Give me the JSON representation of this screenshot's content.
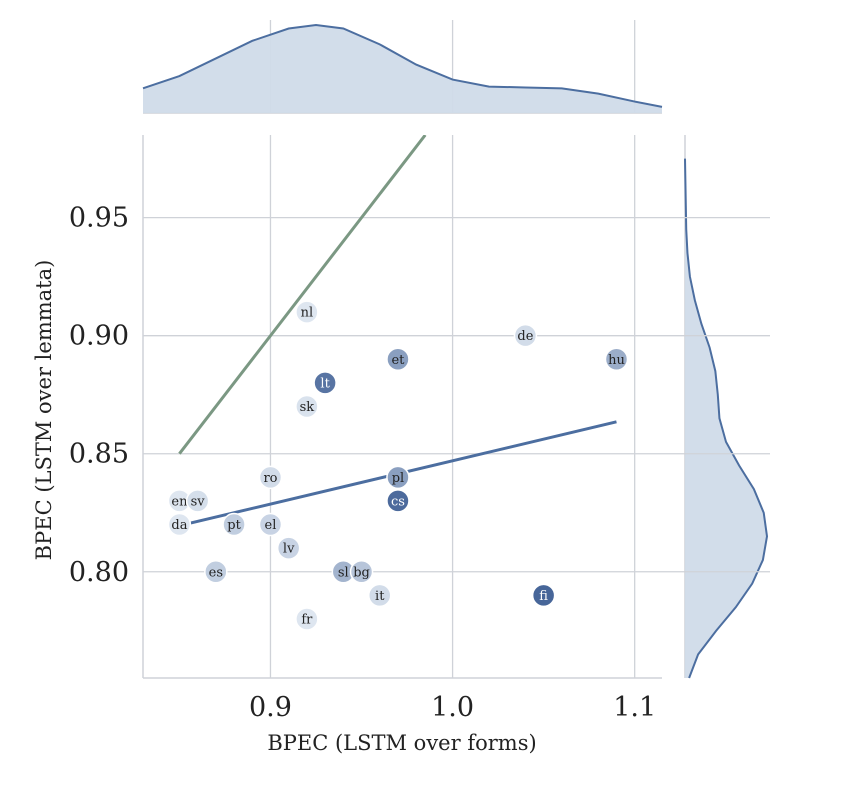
{
  "chart_data": {
    "type": "scatter",
    "title": "",
    "xlabel": "BPEC (LSTM over forms)",
    "ylabel": "BPEC (LSTM over lemmata)",
    "xlim": [
      0.83,
      1.115
    ],
    "ylim": [
      0.755,
      0.985
    ],
    "xticks": [
      0.9,
      1.0,
      1.1
    ],
    "xtick_labels": [
      "0.9",
      "1.0",
      "1.1"
    ],
    "yticks": [
      0.8,
      0.85,
      0.9,
      0.95
    ],
    "ytick_labels": [
      "0.80",
      "0.85",
      "0.90",
      "0.95"
    ],
    "grid": true,
    "legend": "none",
    "colors": {
      "regression_line": "#4c6ea0",
      "identity_line": "#7b9883",
      "kde_fill": "#d0dbe9",
      "kde_line": "#4c6ea0",
      "grid": "#cfd2d8",
      "point_light": "#e6edf5",
      "point_dark": "#3f5f94"
    },
    "points": [
      {
        "label": "nl",
        "x": 0.92,
        "y": 0.91,
        "shade": 0.05
      },
      {
        "label": "de",
        "x": 1.04,
        "y": 0.9,
        "shade": 0.12
      },
      {
        "label": "hu",
        "x": 1.09,
        "y": 0.89,
        "shade": 0.45
      },
      {
        "label": "et",
        "x": 0.97,
        "y": 0.89,
        "shade": 0.55
      },
      {
        "label": "lt",
        "x": 0.93,
        "y": 0.88,
        "shade": 0.85
      },
      {
        "label": "sk",
        "x": 0.92,
        "y": 0.87,
        "shade": 0.08
      },
      {
        "label": "ro",
        "x": 0.9,
        "y": 0.84,
        "shade": 0.12
      },
      {
        "label": "pl",
        "x": 0.97,
        "y": 0.84,
        "shade": 0.55
      },
      {
        "label": "cs",
        "x": 0.97,
        "y": 0.83,
        "shade": 0.92
      },
      {
        "label": "en",
        "x": 0.85,
        "y": 0.83,
        "shade": 0.05
      },
      {
        "label": "sv",
        "x": 0.86,
        "y": 0.83,
        "shade": 0.1
      },
      {
        "label": "da",
        "x": 0.85,
        "y": 0.82,
        "shade": 0.05
      },
      {
        "label": "pt",
        "x": 0.88,
        "y": 0.82,
        "shade": 0.22
      },
      {
        "label": "el",
        "x": 0.9,
        "y": 0.82,
        "shade": 0.18
      },
      {
        "label": "lv",
        "x": 0.91,
        "y": 0.81,
        "shade": 0.18
      },
      {
        "label": "es",
        "x": 0.87,
        "y": 0.8,
        "shade": 0.22
      },
      {
        "label": "sl",
        "x": 0.94,
        "y": 0.8,
        "shade": 0.4
      },
      {
        "label": "bg",
        "x": 0.95,
        "y": 0.8,
        "shade": 0.28
      },
      {
        "label": "it",
        "x": 0.96,
        "y": 0.79,
        "shade": 0.12
      },
      {
        "label": "fr",
        "x": 0.92,
        "y": 0.78,
        "shade": 0.05
      },
      {
        "label": "fi",
        "x": 1.05,
        "y": 0.79,
        "shade": 0.95
      }
    ],
    "regression_line": {
      "x": [
        0.85,
        1.09
      ],
      "y": [
        0.8195,
        0.8635
      ]
    },
    "identity_line": {
      "x": [
        0.85,
        0.985
      ],
      "y": [
        0.85,
        0.985
      ]
    },
    "kde_x": {
      "x": [
        0.83,
        0.85,
        0.87,
        0.89,
        0.91,
        0.925,
        0.94,
        0.96,
        0.98,
        1.0,
        1.02,
        1.04,
        1.06,
        1.08,
        1.1,
        1.115
      ],
      "density": [
        0.28,
        0.42,
        0.62,
        0.82,
        0.96,
        1.0,
        0.96,
        0.78,
        0.55,
        0.38,
        0.3,
        0.29,
        0.28,
        0.22,
        0.13,
        0.07
      ]
    },
    "kde_y": {
      "y": [
        0.755,
        0.765,
        0.775,
        0.785,
        0.795,
        0.805,
        0.815,
        0.825,
        0.835,
        0.845,
        0.855,
        0.865,
        0.875,
        0.885,
        0.895,
        0.905,
        0.915,
        0.925,
        0.935,
        0.945,
        0.955,
        0.965,
        0.975
      ],
      "density": [
        0.05,
        0.16,
        0.38,
        0.62,
        0.82,
        0.95,
        1.0,
        0.96,
        0.84,
        0.66,
        0.5,
        0.42,
        0.4,
        0.37,
        0.3,
        0.2,
        0.12,
        0.06,
        0.03,
        0.015,
        0.01,
        0.005,
        0.0
      ]
    }
  }
}
